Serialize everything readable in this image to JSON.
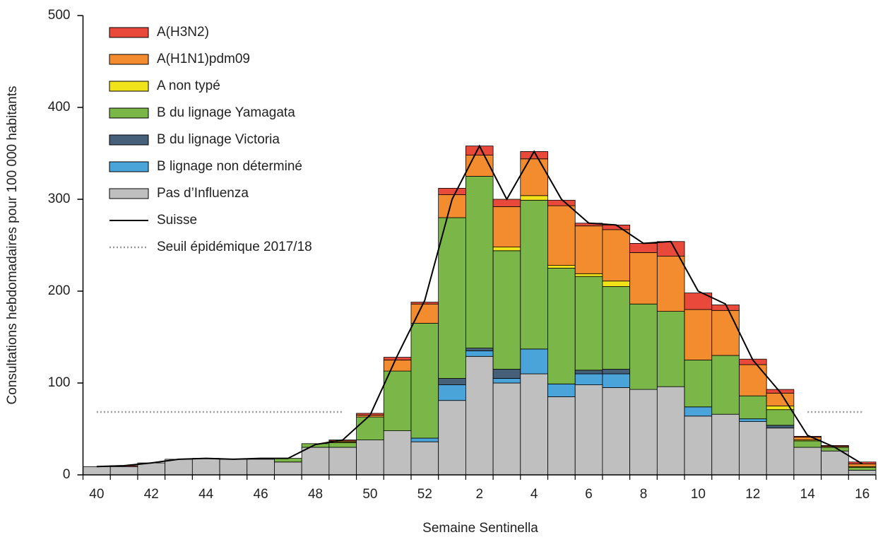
{
  "chart_data": {
    "type": "bar",
    "stacked": true,
    "x_label": "Semaine Sentinella",
    "y_label": "Consultations hebdomadaires pour 100 000 habitants",
    "categories": [
      "40",
      null,
      "42",
      null,
      "44",
      null,
      "46",
      null,
      "48",
      null,
      "50",
      null,
      "52",
      null,
      "2",
      null,
      "4",
      null,
      "6",
      null,
      "8",
      null,
      "10",
      null,
      "12",
      null,
      "14",
      null,
      "16"
    ],
    "ylim": [
      0,
      500
    ],
    "yticks": [
      0,
      100,
      200,
      300,
      400,
      500
    ],
    "legend": "upper left",
    "series": [
      {
        "name": "A(H3N2)",
        "type": "bar",
        "color": "#e8493a",
        "values": [
          0,
          1,
          0,
          0,
          0,
          0,
          0,
          0,
          0,
          1,
          2,
          3,
          2,
          7,
          10,
          8,
          8,
          6,
          3,
          5,
          10,
          16,
          18,
          6,
          6,
          4,
          1,
          1,
          2
        ]
      },
      {
        "name": "A(H1N1)pdm09",
        "type": "bar",
        "color": "#f28c2e",
        "values": [
          0,
          0,
          0,
          0,
          0,
          0,
          0,
          0,
          0,
          1,
          2,
          12,
          21,
          25,
          23,
          44,
          40,
          65,
          52,
          56,
          56,
          60,
          55,
          49,
          34,
          14,
          3,
          1,
          3
        ]
      },
      {
        "name": "A non typé",
        "type": "bar",
        "color": "#f0e31a",
        "values": [
          0,
          0,
          0,
          0,
          0,
          0,
          0,
          0,
          0,
          1,
          0,
          0,
          0,
          0,
          0,
          4,
          5,
          3,
          3,
          6,
          0,
          0,
          0,
          0,
          0,
          4,
          1,
          0,
          1
        ]
      },
      {
        "name": "B du lignage Yamagata",
        "type": "bar",
        "color": "#7ab648",
        "values": [
          0,
          0,
          0,
          0,
          0,
          0,
          0,
          4,
          4,
          5,
          25,
          65,
          125,
          175,
          187,
          129,
          162,
          126,
          102,
          90,
          93,
          82,
          51,
          64,
          25,
          17,
          7,
          4,
          3
        ]
      },
      {
        "name": "B du lignage Victoria",
        "type": "bar",
        "color": "#46607a",
        "values": [
          0,
          0,
          0,
          0,
          0,
          0,
          0,
          0,
          0,
          0,
          0,
          0,
          0,
          7,
          3,
          10,
          0,
          0,
          4,
          5,
          0,
          0,
          0,
          0,
          0,
          3,
          0,
          0,
          0
        ]
      },
      {
        "name": "B lignage non déterminé",
        "type": "bar",
        "color": "#4aa3d9",
        "values": [
          0,
          0,
          0,
          0,
          0,
          0,
          0,
          0,
          0,
          0,
          0,
          0,
          4,
          17,
          6,
          5,
          27,
          14,
          12,
          15,
          0,
          0,
          10,
          0,
          3,
          0,
          0,
          0,
          0
        ]
      },
      {
        "name": "Pas d’Influenza",
        "type": "bar",
        "color": "#bfbfbf",
        "values": [
          9,
          9,
          13,
          17,
          18,
          17,
          17,
          14,
          30,
          30,
          38,
          48,
          36,
          81,
          129,
          100,
          110,
          85,
          98,
          95,
          93,
          96,
          64,
          66,
          58,
          51,
          30,
          26,
          5
        ]
      },
      {
        "name": "Suisse",
        "type": "line",
        "color": "#000000",
        "style": "solid",
        "values": [
          9,
          10,
          13,
          17,
          18,
          17,
          18,
          18,
          33,
          38,
          65,
          130,
          190,
          300,
          358,
          300,
          352,
          300,
          274,
          272,
          252,
          254,
          200,
          186,
          125,
          90,
          43,
          30,
          12
        ]
      },
      {
        "name": "Seuil épidémique 2017/18",
        "type": "line",
        "color": "#999999",
        "style": "dotted",
        "values": [
          68.5,
          68.5,
          68.5,
          68.5,
          68.5,
          68.5,
          68.5,
          68.5,
          68.5,
          68.5,
          null,
          null,
          null,
          null,
          null,
          null,
          null,
          null,
          null,
          null,
          null,
          null,
          null,
          null,
          null,
          null,
          68.5,
          68.5,
          68.5
        ]
      }
    ]
  }
}
